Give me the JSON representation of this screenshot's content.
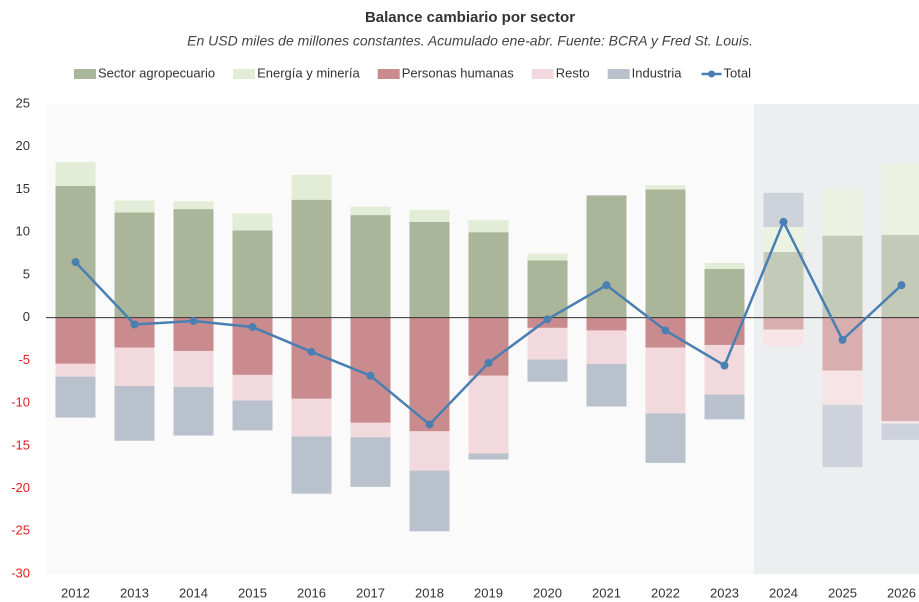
{
  "chart_data": {
    "type": "bar",
    "stacked": true,
    "title": "Balance cambiario por sector",
    "subtitle": "En USD miles de millones constantes. Acumulado ene-abr. Fuente: BCRA y Fred St. Louis.",
    "categories": [
      "2012",
      "2013",
      "2014",
      "2015",
      "2016",
      "2017",
      "2018",
      "2019",
      "2020",
      "2021",
      "2022",
      "2023",
      "2024",
      "2025",
      "2026"
    ],
    "series": [
      {
        "name": "Sector agropecuario",
        "color": "#aab59a",
        "values": [
          15.4,
          12.3,
          12.7,
          10.2,
          13.8,
          12.0,
          11.2,
          10.0,
          6.7,
          14.3,
          15.0,
          5.7,
          7.7,
          9.6,
          9.7
        ]
      },
      {
        "name": "Energía y minería",
        "color": "#e3ecd6",
        "values": [
          2.8,
          1.4,
          0.9,
          2.0,
          2.9,
          1.0,
          1.4,
          1.4,
          0.8,
          0,
          0.5,
          0.7,
          2.9,
          5.4,
          8.3
        ]
      },
      {
        "name": "Personas humanas",
        "color": "#c98b8d",
        "values": [
          -5.4,
          -3.5,
          -3.9,
          -6.7,
          -9.5,
          -12.3,
          -13.3,
          -6.8,
          -1.2,
          -1.5,
          -3.5,
          -3.2,
          -1.4,
          -6.2,
          -12.1
        ]
      },
      {
        "name": "Resto",
        "color": "#f2d9dd",
        "values": [
          -1.5,
          -4.5,
          -4.2,
          -3.0,
          -4.4,
          -1.7,
          -4.6,
          -9.1,
          -3.7,
          -3.9,
          -7.7,
          -5.8,
          -1.9,
          -4.0,
          -0.3
        ]
      },
      {
        "name": "Industria",
        "color": "#b9c1cc",
        "values": [
          -4.8,
          -6.4,
          -5.7,
          -3.5,
          -6.7,
          -5.8,
          -7.1,
          -0.7,
          -2.6,
          -5.0,
          -5.8,
          -2.9,
          4.0,
          -7.3,
          -1.9
        ]
      },
      {
        "name": "Total",
        "type": "line",
        "color": "#4a7fb1",
        "values": [
          6.5,
          -0.8,
          -0.4,
          -1.1,
          -4.0,
          -6.8,
          -12.5,
          -5.3,
          -0.2,
          3.8,
          -1.5,
          -5.6,
          11.2,
          -2.6,
          3.8
        ]
      }
    ],
    "ylim": [
      -30,
      25
    ],
    "yticks": [
      -30,
      -25,
      -20,
      -15,
      -10,
      -5,
      0,
      5,
      10,
      15,
      20,
      25
    ],
    "negative_tick_color": "#e02020",
    "shaded_from_index": 12,
    "legend": "top"
  }
}
